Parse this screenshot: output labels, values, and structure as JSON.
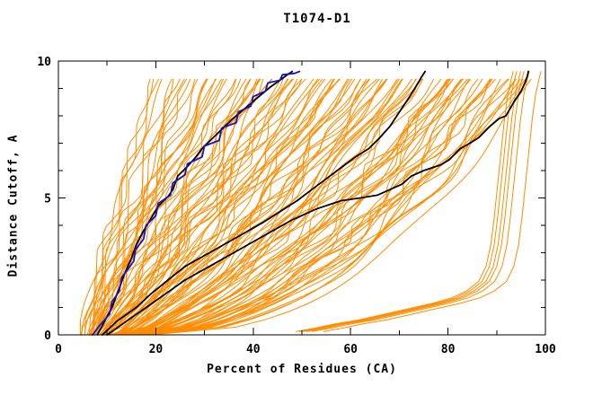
{
  "chart_data": {
    "type": "line",
    "title": "T1074-D1",
    "xlabel": "Percent of Residues (CA)",
    "ylabel": "Distance Cutoff, A",
    "xlim": [
      0,
      100
    ],
    "ylim": [
      0,
      10
    ],
    "x_major_ticks": [
      0,
      20,
      40,
      60,
      80,
      100
    ],
    "x_minor_step": 10,
    "y_major_ticks": [
      0,
      5,
      10
    ],
    "y_minor_step": 1,
    "grid": false,
    "legend": "none",
    "colors": {
      "background": "#ffffff",
      "axis": "#000000",
      "ensemble": "#ff8c00",
      "highlight": "#000000",
      "special": "#1414cd"
    },
    "series": [
      {
        "name": "blue-model",
        "color": "#1414cd",
        "width": 1.8,
        "points": [
          [
            7,
            0
          ],
          [
            8.5,
            0.35
          ],
          [
            10.5,
            0.75
          ],
          [
            11,
            1.2
          ],
          [
            12.5,
            1.6
          ],
          [
            13,
            2.1
          ],
          [
            14.5,
            2.45
          ],
          [
            15.5,
            2.7
          ],
          [
            15.8,
            3.1
          ],
          [
            17.5,
            3.5
          ],
          [
            18,
            4.0
          ],
          [
            20,
            4.35
          ],
          [
            20.5,
            4.8
          ],
          [
            23,
            5.1
          ],
          [
            23.5,
            5.55
          ],
          [
            26,
            5.85
          ],
          [
            26.5,
            6.25
          ],
          [
            29.5,
            6.5
          ],
          [
            30,
            6.9
          ],
          [
            33,
            7.1
          ],
          [
            33.5,
            7.55
          ],
          [
            36.5,
            7.75
          ],
          [
            37,
            8.15
          ],
          [
            39.5,
            8.35
          ],
          [
            40,
            8.7
          ],
          [
            42.5,
            8.9
          ],
          [
            43,
            9.2
          ],
          [
            45.5,
            9.3
          ],
          [
            46,
            9.5
          ],
          [
            48.5,
            9.55
          ],
          [
            49.5,
            9.62
          ]
        ]
      },
      {
        "name": "black-model-1",
        "color": "#000000",
        "width": 1.8,
        "points": [
          [
            8,
            0
          ],
          [
            9.5,
            0.5
          ],
          [
            11,
            1.0
          ],
          [
            12.5,
            1.7
          ],
          [
            13.5,
            2.2
          ],
          [
            15,
            2.8
          ],
          [
            16,
            3.3
          ],
          [
            17.5,
            3.8
          ],
          [
            19,
            4.25
          ],
          [
            20.5,
            4.7
          ],
          [
            22.5,
            5.05
          ],
          [
            23.5,
            5.3
          ],
          [
            24.5,
            5.8
          ],
          [
            26.5,
            6.15
          ],
          [
            28,
            6.45
          ],
          [
            29.5,
            6.8
          ],
          [
            31.5,
            7.15
          ],
          [
            33.5,
            7.5
          ],
          [
            35.5,
            7.85
          ],
          [
            37.5,
            8.15
          ],
          [
            39.5,
            8.45
          ],
          [
            41.5,
            8.75
          ],
          [
            43.5,
            9.05
          ],
          [
            45.5,
            9.3
          ],
          [
            47,
            9.5
          ],
          [
            48,
            9.62
          ]
        ]
      },
      {
        "name": "black-model-2",
        "color": "#000000",
        "width": 1.8,
        "points": [
          [
            9,
            0
          ],
          [
            12,
            0.5
          ],
          [
            16,
            1.0
          ],
          [
            19,
            1.5
          ],
          [
            22.5,
            2.0
          ],
          [
            26,
            2.5
          ],
          [
            30,
            2.9
          ],
          [
            34,
            3.3
          ],
          [
            38,
            3.7
          ],
          [
            42,
            4.1
          ],
          [
            45.5,
            4.5
          ],
          [
            49,
            4.9
          ],
          [
            52,
            5.3
          ],
          [
            55,
            5.7
          ],
          [
            58,
            6.1
          ],
          [
            61,
            6.5
          ],
          [
            63.7,
            6.8
          ],
          [
            66,
            7.2
          ],
          [
            68,
            7.6
          ],
          [
            69.5,
            8.0
          ],
          [
            71,
            8.4
          ],
          [
            72.5,
            8.8
          ],
          [
            73.5,
            9.1
          ],
          [
            74.5,
            9.4
          ],
          [
            75.3,
            9.62
          ]
        ]
      },
      {
        "name": "black-model-3",
        "color": "#000000",
        "width": 1.8,
        "points": [
          [
            10,
            0
          ],
          [
            14,
            0.5
          ],
          [
            18,
            1.0
          ],
          [
            22,
            1.5
          ],
          [
            26,
            2.0
          ],
          [
            30,
            2.4
          ],
          [
            34,
            2.8
          ],
          [
            38,
            3.2
          ],
          [
            43,
            3.7
          ],
          [
            48,
            4.2
          ],
          [
            53,
            4.6
          ],
          [
            58,
            4.9
          ],
          [
            62,
            5.0
          ],
          [
            65.5,
            5.1
          ],
          [
            68,
            5.3
          ],
          [
            70.5,
            5.5
          ],
          [
            72.5,
            5.8
          ],
          [
            75,
            6.0
          ],
          [
            78.4,
            6.2
          ],
          [
            80.3,
            6.4
          ],
          [
            82.5,
            6.8
          ],
          [
            84.5,
            7.0
          ],
          [
            86.3,
            7.2
          ],
          [
            88.5,
            7.6
          ],
          [
            90.5,
            7.9
          ],
          [
            91.9,
            8.0
          ],
          [
            93.5,
            8.5
          ],
          [
            95,
            8.9
          ],
          [
            95.8,
            9.2
          ],
          [
            96.3,
            9.45
          ],
          [
            96.5,
            9.62
          ]
        ]
      }
    ],
    "ensemble": {
      "name": "server-model-cloud",
      "color": "#ff8c00",
      "width": 1,
      "count": 112,
      "seed": 20741,
      "d_top": 9.62,
      "start_min": 5,
      "start_max": 18,
      "end_min": 20,
      "end_max": 97
    },
    "outliers": {
      "name": "wrong-fold-bundle",
      "color": "#ff8c00",
      "width": 1,
      "offsets": [
        -1.2,
        -0.5,
        0.3,
        1.0,
        2.1,
        4.5
      ],
      "base": [
        [
          50,
          0.12
        ],
        [
          54,
          0.25
        ],
        [
          58,
          0.4
        ],
        [
          63,
          0.55
        ],
        [
          68,
          0.75
        ],
        [
          73,
          0.95
        ],
        [
          78,
          1.15
        ],
        [
          82,
          1.35
        ],
        [
          85,
          1.6
        ],
        [
          87.5,
          1.95
        ],
        [
          89,
          2.5
        ],
        [
          90,
          3.3
        ],
        [
          90.7,
          4.3
        ],
        [
          91.4,
          5.5
        ],
        [
          92.1,
          6.7
        ],
        [
          92.8,
          7.9
        ],
        [
          93.5,
          8.8
        ],
        [
          94.2,
          9.35
        ],
        [
          94.6,
          9.62
        ]
      ]
    }
  }
}
